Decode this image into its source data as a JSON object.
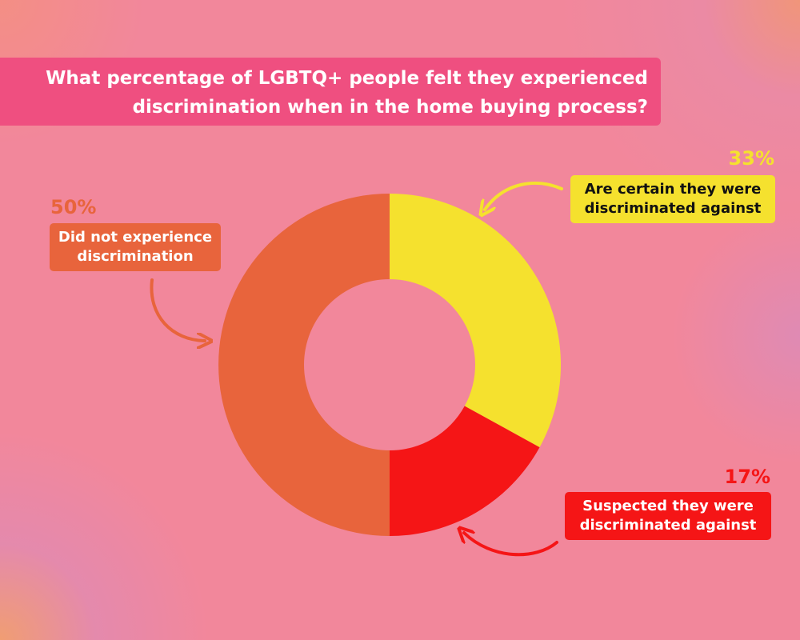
{
  "chart_data": {
    "type": "donut",
    "title": "What percentage of LGBTQ+ people felt they experienced discrimination when in the home buying process?",
    "categories": [
      "Are certain they were discriminated against",
      "Suspected they were discriminated against",
      "Did not experience discrimination"
    ],
    "values": [
      33,
      17,
      50
    ],
    "value_labels": [
      "33%",
      "17%",
      "50%"
    ],
    "colors": [
      "#f5e12e",
      "#f51516",
      "#e8643c"
    ]
  }
}
